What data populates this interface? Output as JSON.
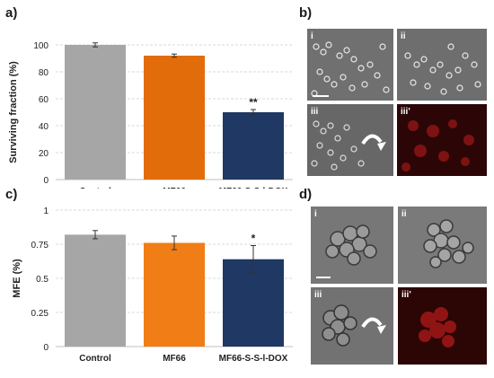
{
  "panels": {
    "a": "a)",
    "b": "b)",
    "c": "c)",
    "d": "d)"
  },
  "micrograph_labels": {
    "b": [
      "i",
      "ii",
      "iii",
      "iii'"
    ],
    "d": [
      "i",
      "ii",
      "iii",
      "iii'"
    ]
  },
  "chart_data": [
    {
      "type": "bar",
      "panel": "a",
      "categories": [
        "Control",
        "MF66",
        "MF66-S-S-l-DOX"
      ],
      "values": [
        100,
        92,
        50
      ],
      "errors": [
        1.5,
        1.2,
        2.0
      ],
      "annotations": [
        "",
        "",
        "**"
      ],
      "colors": [
        "#a6a6a6",
        "#e36c0a",
        "#1f3864"
      ],
      "title": "",
      "xlabel": "",
      "ylabel": "Surviving fraction (%)",
      "ylim": [
        0,
        100
      ],
      "yticks": [
        "0",
        "20",
        "40",
        "60",
        "80",
        "100"
      ],
      "grid": true
    },
    {
      "type": "bar",
      "panel": "c",
      "categories": [
        "Control",
        "MF66",
        "MF66-S-S-l-DOX"
      ],
      "values": [
        0.82,
        0.76,
        0.64
      ],
      "errors": [
        0.03,
        0.05,
        0.1
      ],
      "annotations": [
        "",
        "",
        "*"
      ],
      "colors": [
        "#a6a6a6",
        "#f07d15",
        "#1f3864"
      ],
      "title": "",
      "xlabel": "",
      "ylabel": "MFE (%)",
      "ylim": [
        0,
        1
      ],
      "yticks": [
        "0",
        "0.25",
        "0.5",
        "0.75",
        "1"
      ],
      "grid": true
    }
  ]
}
